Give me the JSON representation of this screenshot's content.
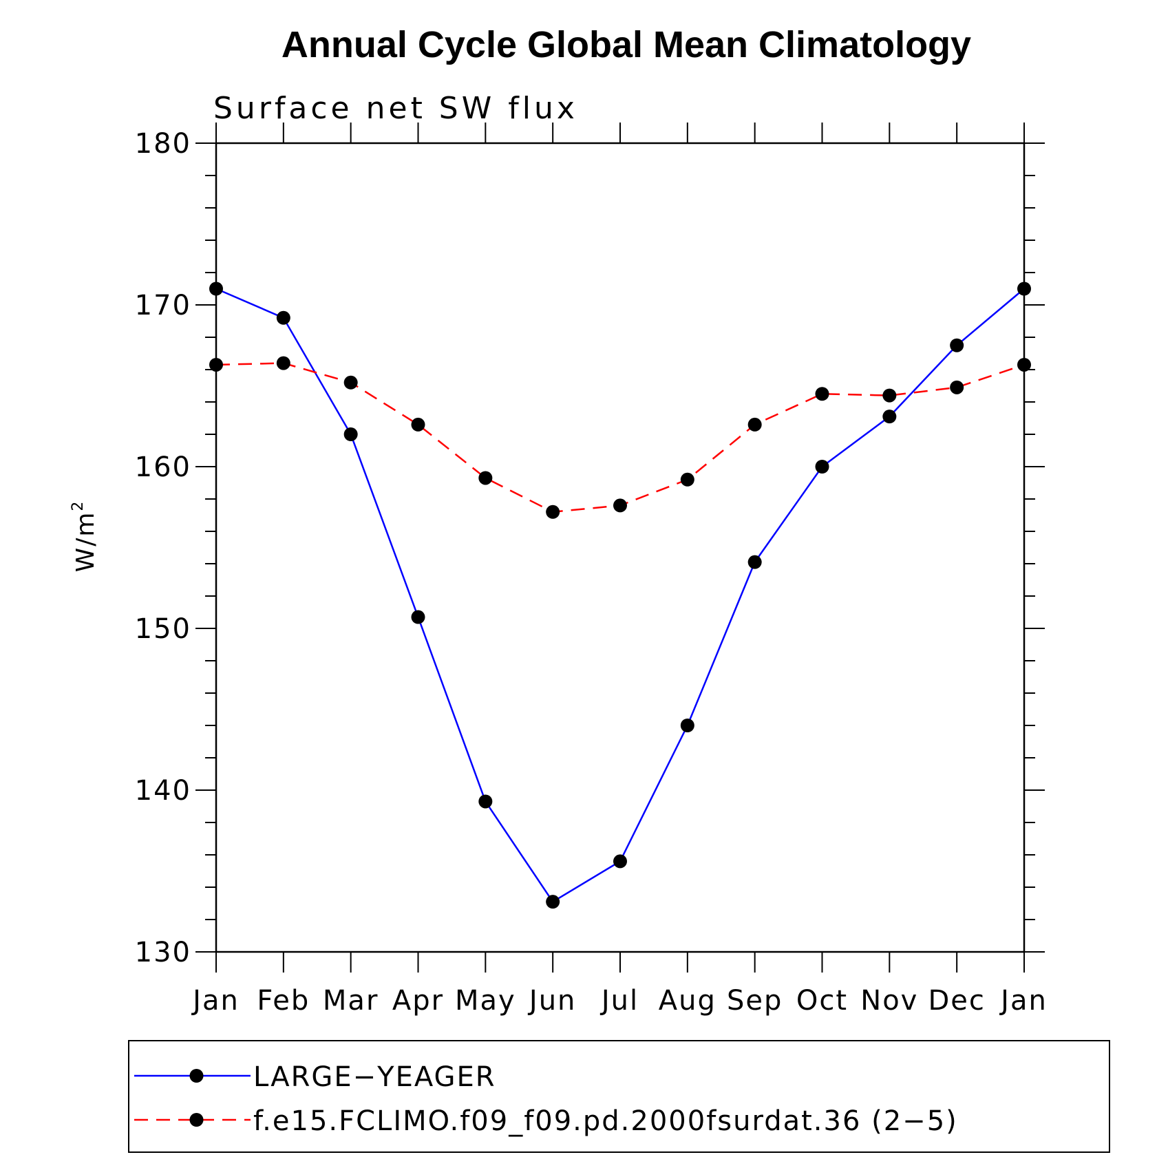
{
  "chart_data": {
    "type": "line",
    "title": "Annual Cycle Global Mean Climatology",
    "subtitle": "Surface net SW flux",
    "ylabel": "W/m",
    "ylabel_superscript": "2",
    "ylim": [
      130,
      180
    ],
    "yticks": [
      "130",
      "140",
      "150",
      "160",
      "170",
      "180"
    ],
    "categories": [
      "Jan",
      "Feb",
      "Mar",
      "Apr",
      "May",
      "Jun",
      "Jul",
      "Aug",
      "Sep",
      "Oct",
      "Nov",
      "Dec",
      "Jan"
    ],
    "grid": false,
    "legend_position": "bottom",
    "series": [
      {
        "name": "LARGE−YEAGER",
        "color": "#0000ff",
        "line_style": "solid",
        "marker": "filled-circle",
        "values": [
          171.0,
          169.2,
          162.0,
          150.7,
          139.3,
          133.1,
          135.6,
          144.0,
          154.1,
          160.0,
          163.1,
          167.5,
          171.0
        ]
      },
      {
        "name": "f.e15.FCLIMO.f09_f09.pd.2000fsurdat.36 (2−5)",
        "color": "#ff0000",
        "line_style": "dashed",
        "marker": "filled-circle",
        "values": [
          166.3,
          166.4,
          165.2,
          162.6,
          159.3,
          157.2,
          157.6,
          159.2,
          162.6,
          164.5,
          164.4,
          164.9,
          166.3
        ]
      }
    ]
  }
}
